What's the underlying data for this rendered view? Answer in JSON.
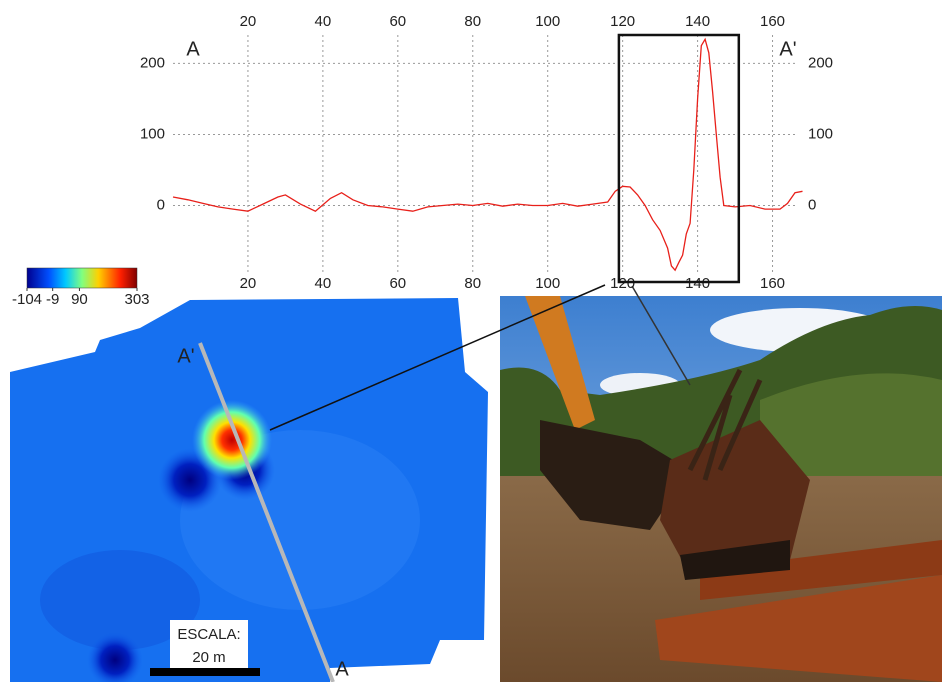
{
  "chart_data": {
    "type": "line",
    "start_label": "A",
    "end_label": "A'",
    "x": [
      0,
      4,
      8,
      12,
      16,
      20,
      24,
      28,
      30,
      34,
      38,
      42,
      45,
      48,
      52,
      56,
      60,
      64,
      68,
      72,
      76,
      80,
      84,
      88,
      92,
      96,
      100,
      104,
      108,
      112,
      116,
      118,
      120,
      122,
      124,
      126,
      128,
      130,
      132,
      133,
      134,
      135,
      136,
      137,
      138,
      139,
      140,
      141,
      142,
      143,
      144,
      145,
      146,
      147,
      150,
      154,
      158,
      162,
      164,
      166,
      168
    ],
    "values": [
      12,
      8,
      3,
      -2,
      -5,
      -8,
      2,
      12,
      15,
      2,
      -8,
      10,
      18,
      8,
      0,
      -2,
      -5,
      -8,
      -2,
      0,
      2,
      0,
      3,
      -1,
      2,
      0,
      0,
      3,
      -1,
      2,
      5,
      20,
      27,
      26,
      15,
      0,
      -20,
      -35,
      -60,
      -85,
      -91,
      -80,
      -70,
      -40,
      -25,
      50,
      150,
      225,
      234,
      215,
      160,
      100,
      40,
      0,
      -2,
      0,
      -5,
      -5,
      3,
      18,
      20
    ],
    "color": "#e8201a",
    "xlim": [
      0,
      170
    ],
    "xticks": [
      20,
      40,
      60,
      80,
      100,
      120,
      140,
      160
    ],
    "ylim": [
      -95,
      240
    ],
    "yticks": [
      0,
      100,
      200
    ],
    "grid": true,
    "highlight_x": [
      119,
      151
    ]
  },
  "colorbar": {
    "ticks": [
      -104,
      -9,
      90,
      303
    ]
  },
  "map": {
    "scale_title": "ESCALA:",
    "scale_length": "20 m"
  }
}
